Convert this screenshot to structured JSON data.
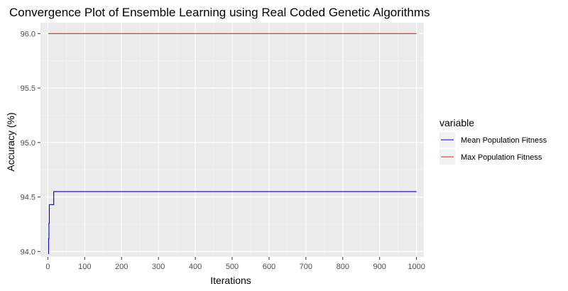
{
  "chart_data": {
    "type": "line",
    "title": "Convergence Plot of Ensemble Learning using Real Coded Genetic Algorithms",
    "xlabel": "Iterations",
    "ylabel": "Accuracy (%)",
    "xlim": [
      -20,
      1020
    ],
    "ylim": [
      93.95,
      96.1
    ],
    "x_ticks": [
      0,
      100,
      200,
      300,
      400,
      500,
      600,
      700,
      800,
      900,
      1000
    ],
    "x_tick_labels": [
      "0",
      "100",
      "200",
      "300",
      "400",
      "500",
      "600",
      "700",
      "800",
      "900",
      "1000"
    ],
    "y_ticks": [
      94.0,
      94.5,
      95.0,
      95.5,
      96.0
    ],
    "y_tick_labels": [
      "94.0",
      "94.5",
      "95.0",
      "95.5",
      "96.0"
    ],
    "grid": true,
    "legend_position": "right",
    "legend_title": "variable",
    "series": [
      {
        "name": "Mean Population Fitness",
        "color": "#0000cc",
        "step": true,
        "x": [
          1,
          2,
          3,
          4,
          5,
          6,
          7,
          8,
          9,
          10,
          11,
          12,
          13,
          14,
          15,
          16,
          1000
        ],
        "y": [
          93.98,
          94.12,
          94.26,
          94.43,
          94.43,
          94.43,
          94.43,
          94.43,
          94.43,
          94.43,
          94.43,
          94.43,
          94.43,
          94.43,
          94.43,
          94.55,
          94.55
        ]
      },
      {
        "name": "Max Population Fitness",
        "color": "#e41a1c",
        "step": true,
        "x": [
          1,
          1000
        ],
        "y": [
          96.0,
          96.0
        ]
      }
    ]
  }
}
